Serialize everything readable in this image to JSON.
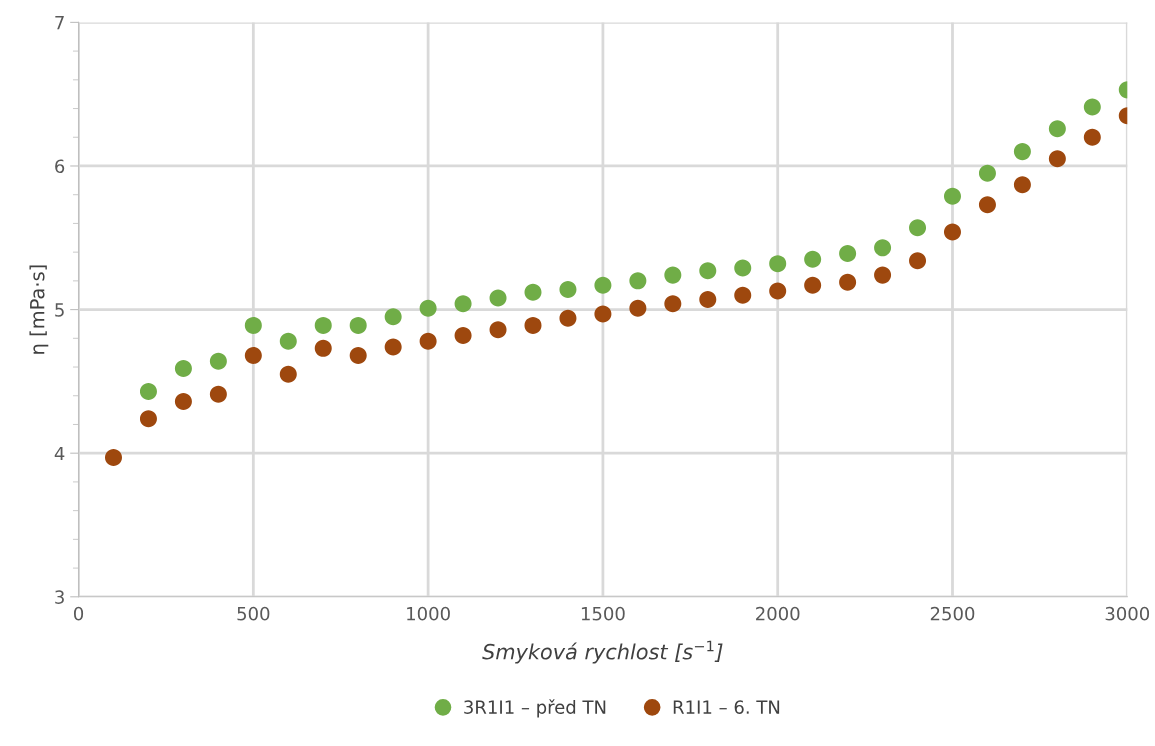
{
  "chart_data": {
    "type": "scatter",
    "xlabel": "Smyková rychlost [s$^{−1}$]",
    "ylabel": "η [mPa·s]",
    "x": [
      100,
      200,
      300,
      400,
      500,
      600,
      700,
      800,
      900,
      1000,
      1100,
      1200,
      1300,
      1400,
      1500,
      1600,
      1700,
      1800,
      1900,
      2000,
      2100,
      2200,
      2300,
      2400,
      2500,
      2600,
      2700,
      2800,
      2900,
      3000
    ],
    "series": [
      {
        "name": "3R1I1 – před TN",
        "color": "#70ad47",
        "values": [
          null,
          4.43,
          4.59,
          4.64,
          4.89,
          4.78,
          4.89,
          4.89,
          4.95,
          5.01,
          5.04,
          5.08,
          5.12,
          5.14,
          5.17,
          5.2,
          5.24,
          5.27,
          5.29,
          5.32,
          5.35,
          5.39,
          5.43,
          5.57,
          5.79,
          5.95,
          6.1,
          6.26,
          6.41,
          6.53
        ]
      },
      {
        "name": "R1I1 – 6. TN",
        "color": "#9e480e",
        "values": [
          3.97,
          4.24,
          4.36,
          4.41,
          4.68,
          4.55,
          4.73,
          4.68,
          4.74,
          4.78,
          4.82,
          4.86,
          4.89,
          4.94,
          4.97,
          5.01,
          5.04,
          5.07,
          5.1,
          5.13,
          5.17,
          5.19,
          5.24,
          5.34,
          5.54,
          5.73,
          5.87,
          6.05,
          6.2,
          6.35
        ]
      }
    ],
    "xlim": [
      0,
      3000
    ],
    "xticks": [
      0,
      500,
      1000,
      1500,
      2000,
      2500,
      3000
    ],
    "ylim": [
      3,
      7
    ],
    "yticks": [
      3,
      4,
      5,
      6,
      7
    ],
    "grid": true,
    "legend": "bottom",
    "marker": "circle"
  }
}
